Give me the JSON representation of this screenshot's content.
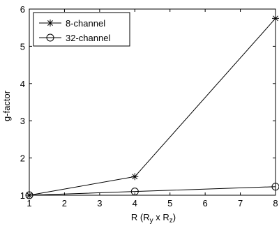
{
  "chart_data": {
    "type": "line",
    "xlabel_parts": [
      "R (R",
      "y",
      " x R",
      "z",
      ")"
    ],
    "ylabel": "g-factor",
    "xlim": [
      1,
      8
    ],
    "ylim": [
      1,
      6
    ],
    "xticks": [
      1,
      2,
      3,
      4,
      5,
      6,
      7,
      8
    ],
    "yticks": [
      1,
      2,
      3,
      4,
      5,
      6
    ],
    "grid": false,
    "legend_position": "top-left",
    "series": [
      {
        "name": "8-channel",
        "marker": "asterisk",
        "color": "#000000",
        "x": [
          1,
          4,
          8
        ],
        "y": [
          1.0,
          1.5,
          5.75
        ]
      },
      {
        "name": "32-channel",
        "marker": "circle",
        "color": "#000000",
        "x": [
          1,
          4,
          8
        ],
        "y": [
          1.0,
          1.1,
          1.23
        ]
      }
    ]
  }
}
